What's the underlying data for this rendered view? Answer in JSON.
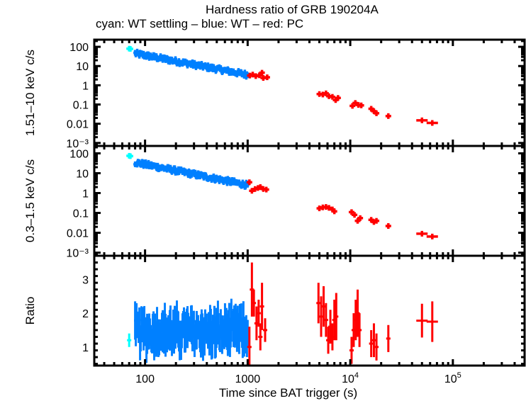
{
  "title": "Hardness ratio of GRB 190204A",
  "subtitle": "cyan: WT settling – blue: WT – red: PC",
  "colors": {
    "cyan": "#00ffff",
    "blue": "#0080ff",
    "red": "#ff0000",
    "frame": "#000000"
  },
  "chart_data": [
    {
      "type": "scatter",
      "name": "hard-band",
      "ylabel": "1.51–10 keV c/s",
      "xscale": "log",
      "yscale": "log",
      "xlim": [
        32,
        500000
      ],
      "ylim": [
        0.0007,
        235
      ],
      "yticks": [
        {
          "v": 100,
          "label": "100"
        },
        {
          "v": 10,
          "label": "10"
        },
        {
          "v": 1,
          "label": "1"
        },
        {
          "v": 0.1,
          "label": "0.1"
        },
        {
          "v": 0.01,
          "label": "0.01"
        },
        {
          "v": 0.001,
          "label": "10⁻³"
        }
      ],
      "series": [
        {
          "name": "WT settling",
          "color": "cyan",
          "points": [
            [
              70,
              80
            ],
            [
              72,
              78
            ]
          ]
        },
        {
          "name": "WT",
          "color": "blue",
          "trend": {
            "x0": 80,
            "y0": 45,
            "x1": 1000,
            "y1": 3.5,
            "n": 160,
            "scatter": 0.12
          }
        },
        {
          "name": "PC",
          "color": "red",
          "points": [
            [
              1050,
              3.2
            ],
            [
              1120,
              3.6
            ],
            [
              1200,
              3.0
            ],
            [
              1300,
              3.3
            ],
            [
              1380,
              4.5
            ],
            [
              1420,
              2.4
            ],
            [
              1550,
              2.6
            ],
            [
              5000,
              0.35
            ],
            [
              5400,
              0.33
            ],
            [
              5800,
              0.38
            ],
            [
              6200,
              0.27
            ],
            [
              6700,
              0.25
            ],
            [
              7200,
              0.17
            ],
            [
              7600,
              0.22
            ],
            [
              10500,
              0.085
            ],
            [
              11200,
              0.12
            ],
            [
              12000,
              0.095
            ],
            [
              12800,
              0.09
            ],
            [
              16000,
              0.06
            ],
            [
              17000,
              0.045
            ],
            [
              18000,
              0.035
            ],
            [
              23500,
              0.025
            ],
            [
              50000,
              0.015
            ],
            [
              63000,
              0.011
            ]
          ]
        }
      ]
    },
    {
      "type": "scatter",
      "name": "soft-band",
      "ylabel": "0.3–1.5 keV c/s",
      "xscale": "log",
      "yscale": "log",
      "xlim": [
        32,
        500000
      ],
      "ylim": [
        0.0007,
        235
      ],
      "yticks": [
        {
          "v": 100,
          "label": "100"
        },
        {
          "v": 10,
          "label": "10"
        },
        {
          "v": 1,
          "label": "1"
        },
        {
          "v": 0.1,
          "label": "0.1"
        },
        {
          "v": 0.01,
          "label": "0.01"
        },
        {
          "v": 0.001,
          "label": "10⁻³"
        }
      ],
      "series": [
        {
          "name": "WT settling",
          "color": "cyan",
          "points": [
            [
              70,
              75
            ],
            [
              72,
              72
            ]
          ]
        },
        {
          "name": "WT",
          "color": "blue",
          "trend": {
            "x0": 80,
            "y0": 35,
            "x1": 1000,
            "y1": 2.5,
            "n": 160,
            "scatter": 0.12
          }
        },
        {
          "name": "PC",
          "color": "red",
          "points": [
            [
              1040,
              3.5
            ],
            [
              1100,
              1.3
            ],
            [
              1180,
              1.6
            ],
            [
              1260,
              1.8
            ],
            [
              1330,
              2.0
            ],
            [
              1420,
              1.6
            ],
            [
              1520,
              1.5
            ],
            [
              5000,
              0.17
            ],
            [
              5400,
              0.19
            ],
            [
              5800,
              0.2
            ],
            [
              6200,
              0.18
            ],
            [
              6700,
              0.15
            ],
            [
              7000,
              0.12
            ],
            [
              10300,
              0.11
            ],
            [
              11000,
              0.08
            ],
            [
              11800,
              0.04
            ],
            [
              12500,
              0.055
            ],
            [
              16000,
              0.045
            ],
            [
              17000,
              0.035
            ],
            [
              18000,
              0.04
            ],
            [
              23500,
              0.022
            ],
            [
              50000,
              0.009
            ],
            [
              63000,
              0.0065
            ]
          ]
        }
      ]
    },
    {
      "type": "scatter",
      "name": "ratio",
      "ylabel": "Ratio",
      "xlabel": "Time since BAT trigger (s)",
      "xscale": "log",
      "yscale": "linear",
      "xlim": [
        32,
        500000
      ],
      "ylim": [
        0.45,
        3.7
      ],
      "yticks": [
        {
          "v": 1,
          "label": "1"
        },
        {
          "v": 2,
          "label": "2"
        },
        {
          "v": 3,
          "label": "3"
        }
      ],
      "xticks": [
        {
          "v": 100,
          "label": "100"
        },
        {
          "v": 1000,
          "label": "1000"
        },
        {
          "v": 10000,
          "label": "10",
          "sup": "4"
        },
        {
          "v": 100000,
          "label": "10",
          "sup": "5"
        }
      ],
      "series": [
        {
          "name": "WT settling",
          "color": "cyan",
          "points": [
            [
              70,
              1.2,
              0.2
            ]
          ]
        },
        {
          "name": "WT",
          "color": "blue",
          "trend": {
            "x0": 80,
            "y0": 1.45,
            "x1": 1000,
            "y1": 1.45,
            "n": 160,
            "scatter": 0.35,
            "err": 0.5
          }
        },
        {
          "name": "PC",
          "color": "red",
          "points": [
            [
              1040,
              1.0,
              0.6
            ],
            [
              1100,
              2.7,
              0.8
            ],
            [
              1150,
              2.3,
              0.4
            ],
            [
              1220,
              1.7,
              0.5
            ],
            [
              1280,
              2.0,
              0.4
            ],
            [
              1330,
              1.3,
              0.4
            ],
            [
              1380,
              2.2,
              0.7
            ],
            [
              1480,
              1.5,
              0.35
            ],
            [
              4900,
              2.3,
              0.6
            ],
            [
              5200,
              1.9,
              0.6
            ],
            [
              5500,
              2.2,
              0.6
            ],
            [
              5800,
              1.8,
              0.5
            ],
            [
              6100,
              1.2,
              0.4
            ],
            [
              6400,
              1.6,
              0.5
            ],
            [
              6700,
              1.3,
              0.4
            ],
            [
              7000,
              1.8,
              0.6
            ],
            [
              7300,
              1.9,
              0.7
            ],
            [
              10300,
              0.9,
              0.4
            ],
            [
              10800,
              1.5,
              0.5
            ],
            [
              11300,
              1.8,
              0.6
            ],
            [
              11800,
              2.0,
              0.7
            ],
            [
              12300,
              1.5,
              0.5
            ],
            [
              16000,
              1.1,
              0.4
            ],
            [
              17000,
              1.2,
              0.5
            ],
            [
              18000,
              1.0,
              0.4
            ],
            [
              23500,
              1.25,
              0.4
            ],
            [
              50000,
              1.78,
              0.5
            ],
            [
              63000,
              1.75,
              0.6
            ]
          ]
        }
      ]
    }
  ]
}
